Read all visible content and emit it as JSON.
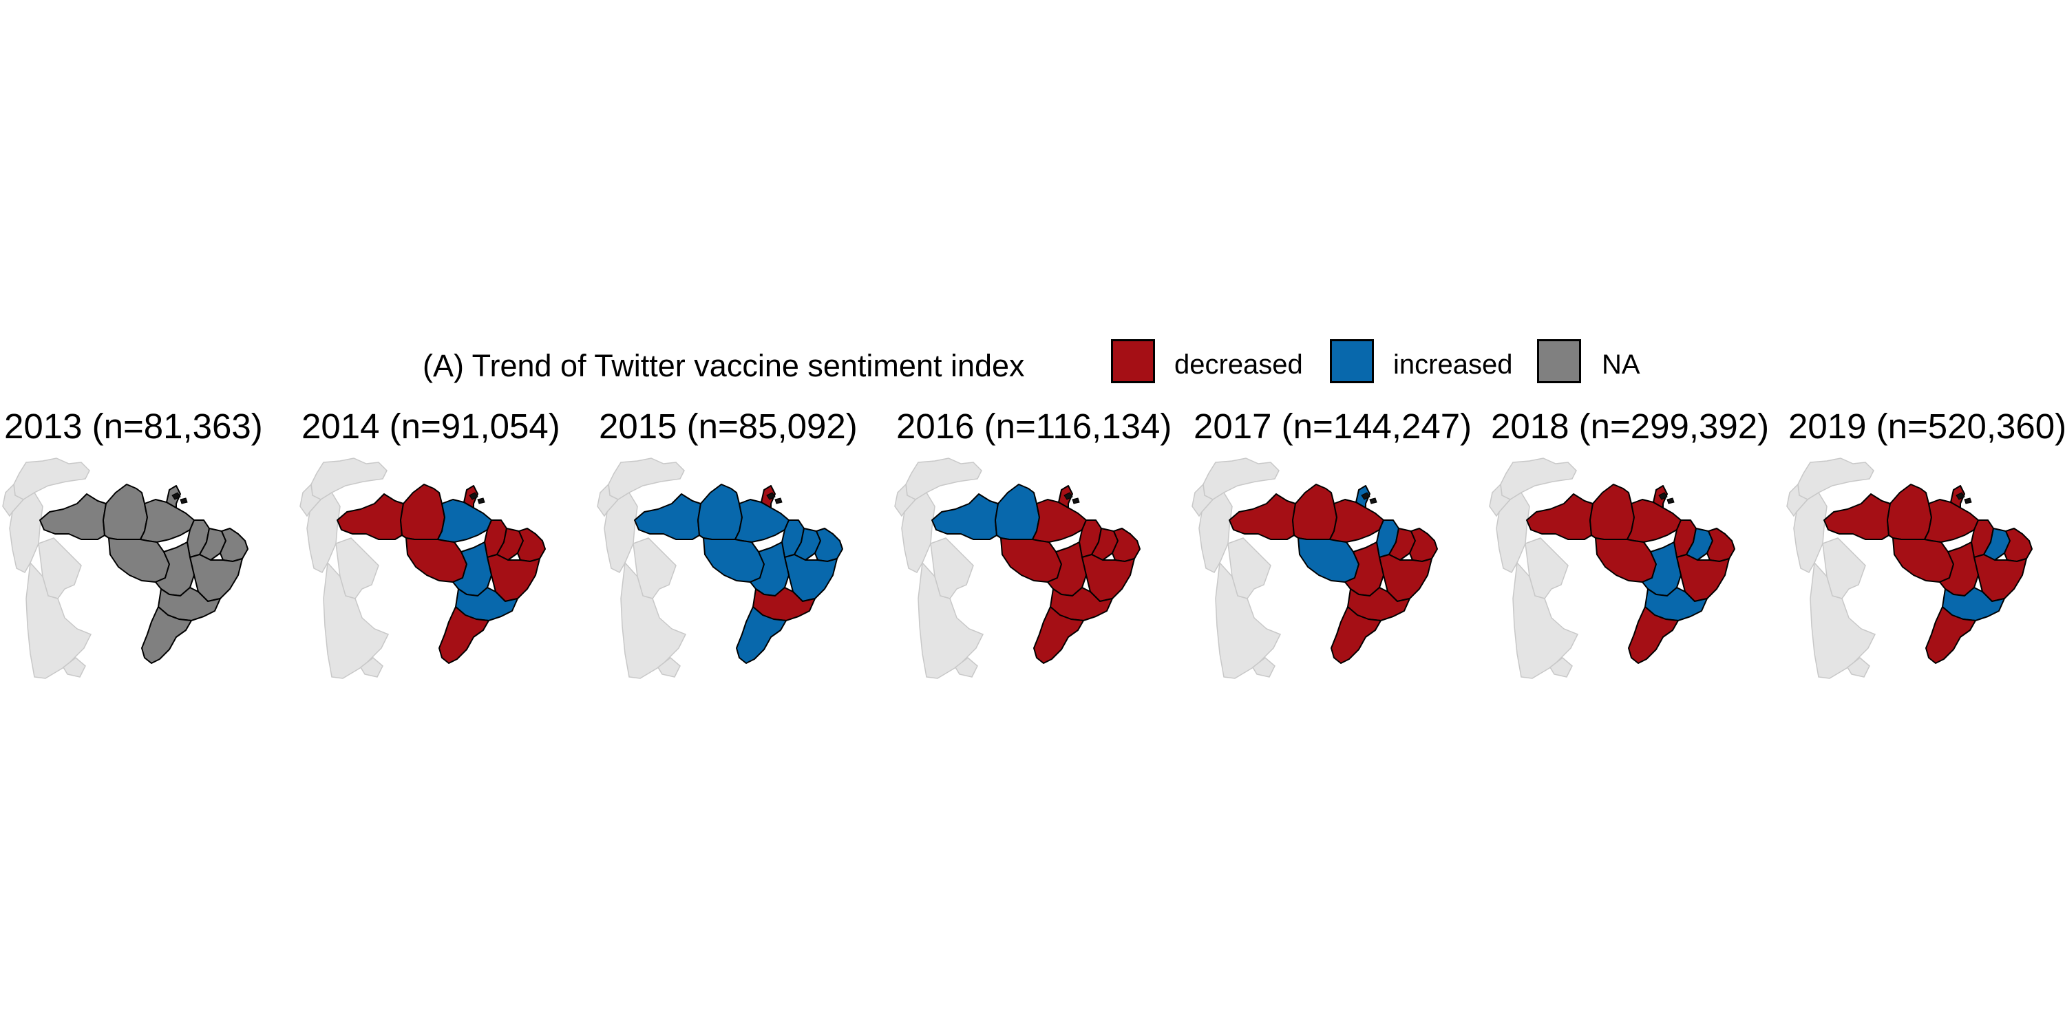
{
  "legend": {
    "title": "(A) Trend of Twitter vaccine sentiment index",
    "items": [
      {
        "label": "decreased",
        "color": "#A50F15"
      },
      {
        "label": "increased",
        "color": "#0868AC"
      },
      {
        "label": "NA",
        "color": "#808080"
      }
    ]
  },
  "colors": {
    "decreased": "#A50F15",
    "increased": "#0868AC",
    "na": "#808080",
    "neighbors": "#E4E4E4"
  },
  "panels": [
    {
      "year_label": "2013 (n=81,363)",
      "status": {
        "north": "na",
        "amazonas": "na",
        "para": "na",
        "amapa": "na",
        "maranhao": "na",
        "piaui": "na",
        "northeast": "na",
        "bahia": "na",
        "center": "na",
        "goias": "na",
        "southeast": "na",
        "south": "na"
      }
    },
    {
      "year_label": "2014 (n=91,054)",
      "status": {
        "north": "decreased",
        "amazonas": "decreased",
        "para": "increased",
        "amapa": "decreased",
        "maranhao": "decreased",
        "piaui": "decreased",
        "northeast": "decreased",
        "bahia": "decreased",
        "center": "decreased",
        "goias": "increased",
        "southeast": "increased",
        "south": "decreased"
      }
    },
    {
      "year_label": "2015 (n=85,092)",
      "status": {
        "north": "increased",
        "amazonas": "increased",
        "para": "increased",
        "amapa": "decreased",
        "maranhao": "increased",
        "piaui": "increased",
        "northeast": "increased",
        "bahia": "increased",
        "center": "increased",
        "goias": "increased",
        "southeast": "decreased",
        "south": "increased"
      }
    },
    {
      "year_label": "2016 (n=116,134)",
      "status": {
        "north": "increased",
        "amazonas": "increased",
        "para": "decreased",
        "amapa": "decreased",
        "maranhao": "decreased",
        "piaui": "decreased",
        "northeast": "decreased",
        "bahia": "decreased",
        "center": "decreased",
        "goias": "decreased",
        "southeast": "decreased",
        "south": "decreased"
      }
    },
    {
      "year_label": "2017 (n=144,247)",
      "status": {
        "north": "decreased",
        "amazonas": "decreased",
        "para": "decreased",
        "amapa": "increased",
        "maranhao": "increased",
        "piaui": "decreased",
        "northeast": "decreased",
        "bahia": "decreased",
        "center": "increased",
        "goias": "decreased",
        "southeast": "decreased",
        "south": "decreased"
      }
    },
    {
      "year_label": "2018 (n=299,392)",
      "status": {
        "north": "decreased",
        "amazonas": "decreased",
        "para": "decreased",
        "amapa": "decreased",
        "maranhao": "decreased",
        "piaui": "increased",
        "northeast": "decreased",
        "bahia": "decreased",
        "center": "decreased",
        "goias": "increased",
        "southeast": "increased",
        "south": "decreased"
      }
    },
    {
      "year_label": "2019 (n=520,360)",
      "status": {
        "north": "decreased",
        "amazonas": "decreased",
        "para": "decreased",
        "amapa": "decreased",
        "maranhao": "decreased",
        "piaui": "increased",
        "northeast": "decreased",
        "bahia": "decreased",
        "center": "decreased",
        "goias": "decreased",
        "southeast": "increased",
        "south": "decreased"
      }
    }
  ]
}
